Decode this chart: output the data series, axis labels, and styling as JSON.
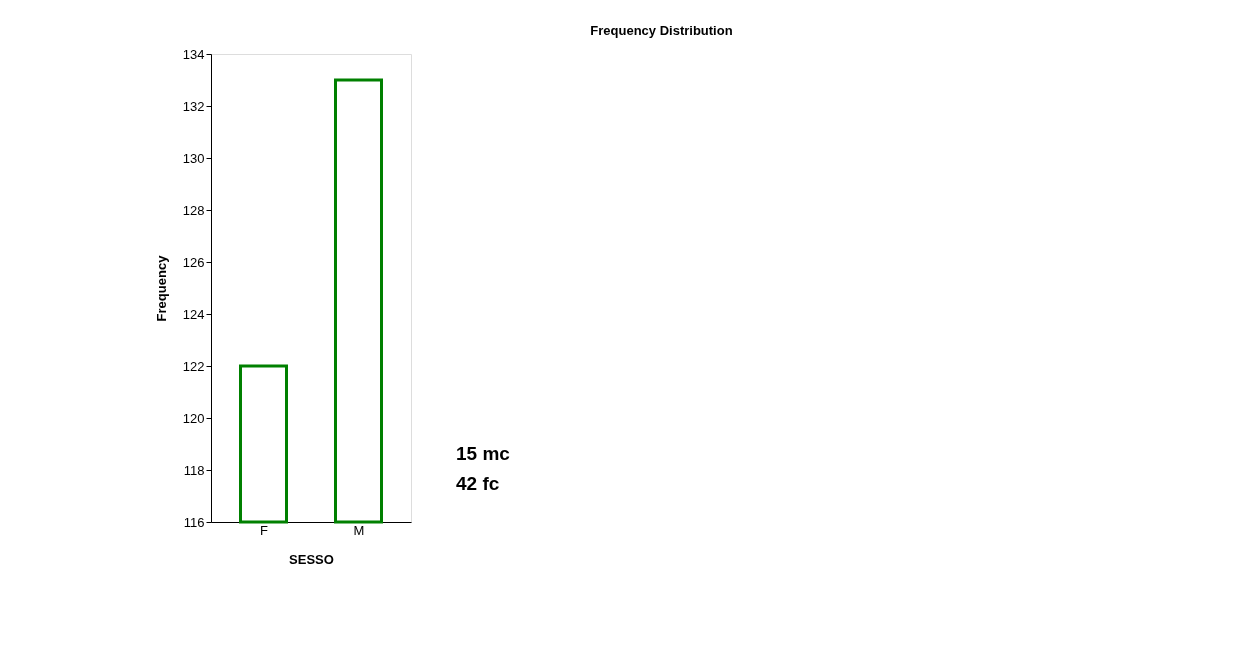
{
  "chart_data": {
    "type": "bar",
    "title": "Frequency Distribution",
    "xlabel": "SESSO",
    "ylabel": "Frequency",
    "categories": [
      "F",
      "M"
    ],
    "series": [
      {
        "color": "#008000",
        "values": [
          122,
          133
        ]
      }
    ],
    "ylim": [
      116,
      134
    ],
    "yticks": [
      116,
      118,
      120,
      122,
      124,
      126,
      128,
      130,
      132,
      134
    ],
    "annotations": [
      "15 mc",
      "42 fc"
    ]
  }
}
